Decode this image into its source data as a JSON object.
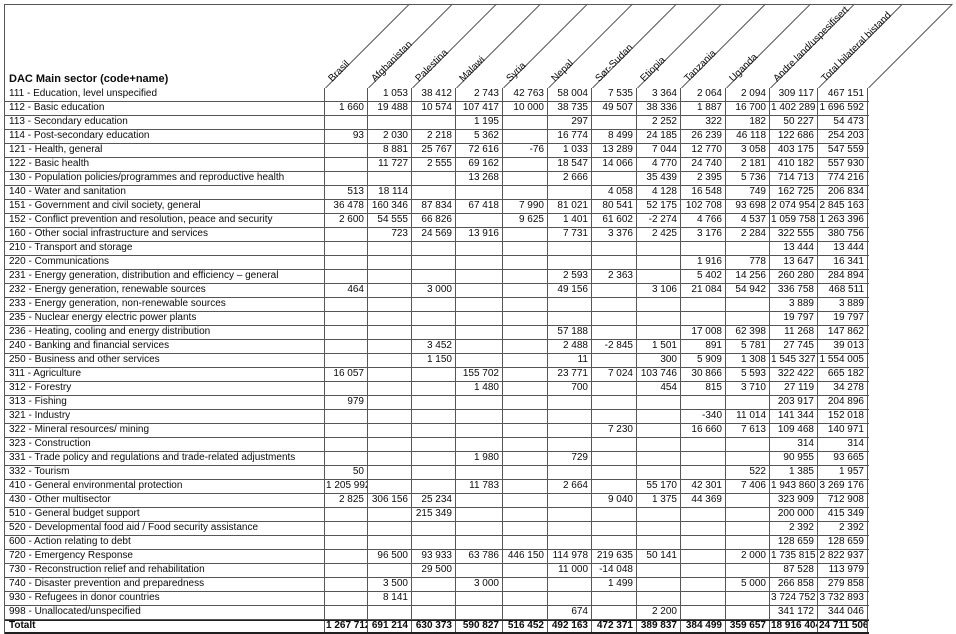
{
  "colors": {
    "grid": "#565656",
    "heavy": "#1f1f1f",
    "text": "#0b0b0b",
    "background": "#ffffff"
  },
  "table": {
    "corner_label": "DAC Main sector (code+name)",
    "columns": [
      "Brasil",
      "Afghanistan",
      "Palestina",
      "Malawi",
      "Syria",
      "Nepal",
      "Sør-Sudan",
      "Etiopia",
      "Tanzania",
      "Uganda",
      "Andre land/uspesifisert",
      "Total bilateral bistand"
    ],
    "rows": [
      {
        "label": "111 - Education, level unspecified",
        "values": [
          "",
          "1 053",
          "38 412",
          "2 743",
          "42 763",
          "58 004",
          "7 535",
          "3 364",
          "2 064",
          "2 094",
          "309 117",
          "467 151"
        ]
      },
      {
        "label": "112 - Basic education",
        "values": [
          "1 660",
          "19 488",
          "10 574",
          "107 417",
          "10 000",
          "38 735",
          "49 507",
          "38 336",
          "1 887",
          "16 700",
          "1 402 289",
          "1 696 592"
        ]
      },
      {
        "label": "113 - Secondary education",
        "values": [
          "",
          "",
          "",
          "1 195",
          "",
          "297",
          "",
          "2 252",
          "322",
          "182",
          "50 227",
          "54 473"
        ]
      },
      {
        "label": "114 - Post-secondary education",
        "values": [
          "93",
          "2 030",
          "2 218",
          "5 362",
          "",
          "16 774",
          "8 499",
          "24 185",
          "26 239",
          "46 118",
          "122 686",
          "254 203"
        ]
      },
      {
        "label": "121 - Health, general",
        "values": [
          "",
          "8 881",
          "25 767",
          "72 616",
          "-76",
          "1 033",
          "13 289",
          "7 044",
          "12 770",
          "3 058",
          "403 175",
          "547 559"
        ]
      },
      {
        "label": "122 - Basic health",
        "values": [
          "",
          "11 727",
          "2 555",
          "69 162",
          "",
          "18 547",
          "14 066",
          "4 770",
          "24 740",
          "2 181",
          "410 182",
          "557 930"
        ]
      },
      {
        "label": "130 - Population policies/programmes and reproductive health",
        "values": [
          "",
          "",
          "",
          "13 268",
          "",
          "2 666",
          "",
          "35 439",
          "2 395",
          "5 736",
          "714 713",
          "774 216"
        ]
      },
      {
        "label": "140 - Water and sanitation",
        "values": [
          "513",
          "18 114",
          "",
          "",
          "",
          "",
          "4 058",
          "4 128",
          "16 548",
          "749",
          "162 725",
          "206 834"
        ]
      },
      {
        "label": "151 - Government and civil society, general",
        "values": [
          "36 478",
          "160 346",
          "87 834",
          "67 418",
          "7 990",
          "81 021",
          "80 541",
          "52 175",
          "102 708",
          "93 698",
          "2 074 954",
          "2 845 163"
        ]
      },
      {
        "label": "152 - Conflict prevention and resolution, peace and security",
        "values": [
          "2 600",
          "54 555",
          "66 826",
          "",
          "9 625",
          "1 401",
          "61 602",
          "-2 274",
          "4 766",
          "4 537",
          "1 059 758",
          "1 263 396"
        ]
      },
      {
        "label": "160 - Other social infrastructure and services",
        "values": [
          "",
          "723",
          "24 569",
          "13 916",
          "",
          "7 731",
          "3 376",
          "2 425",
          "3 176",
          "2 284",
          "322 555",
          "380 756"
        ]
      },
      {
        "label": "210 - Transport and storage",
        "values": [
          "",
          "",
          "",
          "",
          "",
          "",
          "",
          "",
          "",
          "",
          "13 444",
          "13 444"
        ]
      },
      {
        "label": "220 - Communications",
        "values": [
          "",
          "",
          "",
          "",
          "",
          "",
          "",
          "",
          "1 916",
          "778",
          "13 647",
          "16 341"
        ]
      },
      {
        "label": "231 - Energy generation, distribution and efficiency – general",
        "values": [
          "",
          "",
          "",
          "",
          "",
          "2 593",
          "2 363",
          "",
          "5 402",
          "14 256",
          "260 280",
          "284 894"
        ]
      },
      {
        "label": "232 - Energy generation, renewable sources",
        "values": [
          "464",
          "",
          "3 000",
          "",
          "",
          "49 156",
          "",
          "3 106",
          "21 084",
          "54 942",
          "336 758",
          "468 511"
        ]
      },
      {
        "label": "233 - Energy generation, non-renewable sources",
        "values": [
          "",
          "",
          "",
          "",
          "",
          "",
          "",
          "",
          "",
          "",
          "3 889",
          "3 889"
        ]
      },
      {
        "label": "235 - Nuclear energy electric power plants",
        "values": [
          "",
          "",
          "",
          "",
          "",
          "",
          "",
          "",
          "",
          "",
          "19 797",
          "19 797"
        ]
      },
      {
        "label": "236 - Heating, cooling and energy distribution",
        "values": [
          "",
          "",
          "",
          "",
          "",
          "57 188",
          "",
          "",
          "17 008",
          "62 398",
          "11 268",
          "147 862"
        ]
      },
      {
        "label": "240 - Banking and financial services",
        "values": [
          "",
          "",
          "3 452",
          "",
          "",
          "2 488",
          "-2 845",
          "1 501",
          "891",
          "5 781",
          "27 745",
          "39 013"
        ]
      },
      {
        "label": "250 - Business and other services",
        "values": [
          "",
          "",
          "1 150",
          "",
          "",
          "11",
          "",
          "300",
          "5 909",
          "1 308",
          "1 545 327",
          "1 554 005"
        ]
      },
      {
        "label": "311 - Agriculture",
        "values": [
          "16 057",
          "",
          "",
          "155 702",
          "",
          "23 771",
          "7 024",
          "103 746",
          "30 866",
          "5 593",
          "322 422",
          "665 182"
        ]
      },
      {
        "label": "312 - Forestry",
        "values": [
          "",
          "",
          "",
          "1 480",
          "",
          "700",
          "",
          "454",
          "815",
          "3 710",
          "27 119",
          "34 278"
        ]
      },
      {
        "label": "313 - Fishing",
        "values": [
          "979",
          "",
          "",
          "",
          "",
          "",
          "",
          "",
          "",
          "",
          "203 917",
          "204 896"
        ]
      },
      {
        "label": "321 - Industry",
        "values": [
          "",
          "",
          "",
          "",
          "",
          "",
          "",
          "",
          "-340",
          "11 014",
          "141 344",
          "152 018"
        ]
      },
      {
        "label": "322 - Mineral resources/ mining",
        "values": [
          "",
          "",
          "",
          "",
          "",
          "",
          "7 230",
          "",
          "16 660",
          "7 613",
          "109 468",
          "140 971"
        ]
      },
      {
        "label": "323 - Construction",
        "values": [
          "",
          "",
          "",
          "",
          "",
          "",
          "",
          "",
          "",
          "",
          "314",
          "314"
        ]
      },
      {
        "label": "331 - Trade policy and regulations and trade-related adjustments",
        "values": [
          "",
          "",
          "",
          "1 980",
          "",
          "729",
          "",
          "",
          "",
          "",
          "90 955",
          "93 665"
        ]
      },
      {
        "label": "332 - Tourism",
        "values": [
          "50",
          "",
          "",
          "",
          "",
          "",
          "",
          "",
          "",
          "522",
          "1 385",
          "1 957"
        ]
      },
      {
        "label": "410 - General environmental protection",
        "values": [
          "1 205 992",
          "",
          "",
          "11 783",
          "",
          "2 664",
          "",
          "55 170",
          "42 301",
          "7 406",
          "1 943 860",
          "3 269 176"
        ]
      },
      {
        "label": "430 - Other multisector",
        "values": [
          "2 825",
          "306 156",
          "25 234",
          "",
          "",
          "",
          "9 040",
          "1 375",
          "44 369",
          "",
          "323 909",
          "712 908"
        ]
      },
      {
        "label": "510 - General budget support",
        "values": [
          "",
          "",
          "215 349",
          "",
          "",
          "",
          "",
          "",
          "",
          "",
          "200 000",
          "415 349"
        ]
      },
      {
        "label": "520 - Developmental food aid / Food security assistance",
        "values": [
          "",
          "",
          "",
          "",
          "",
          "",
          "",
          "",
          "",
          "",
          "2 392",
          "2 392"
        ]
      },
      {
        "label": "600 - Action relating to debt",
        "values": [
          "",
          "",
          "",
          "",
          "",
          "",
          "",
          "",
          "",
          "",
          "128 659",
          "128 659"
        ]
      },
      {
        "label": "720 - Emergency Response",
        "values": [
          "",
          "96 500",
          "93 933",
          "63 786",
          "446 150",
          "114 978",
          "219 635",
          "50 141",
          "",
          "2 000",
          "1 735 815",
          "2 822 937"
        ]
      },
      {
        "label": "730 - Reconstruction relief and rehabilitation",
        "values": [
          "",
          "",
          "29 500",
          "",
          "",
          "11 000",
          "-14 048",
          "",
          "",
          "",
          "87 528",
          "113 979"
        ]
      },
      {
        "label": "740 - Disaster prevention and preparedness",
        "values": [
          "",
          "3 500",
          "",
          "3 000",
          "",
          "",
          "1 499",
          "",
          "",
          "5 000",
          "266 858",
          "279 858"
        ]
      },
      {
        "label": "930 - Refugees in donor countries",
        "values": [
          "",
          "8 141",
          "",
          "",
          "",
          "",
          "",
          "",
          "",
          "",
          "3 724 752",
          "3 732 893"
        ]
      },
      {
        "label": "998 - Unallocated/unspecified",
        "values": [
          "",
          "",
          "",
          "",
          "",
          "674",
          "",
          "2 200",
          "",
          "",
          "341 172",
          "344 046"
        ]
      }
    ],
    "total_row": {
      "label": "Totalt",
      "values": [
        "1 267 712",
        "691 214",
        "630 373",
        "590 827",
        "516 452",
        "492 163",
        "472 371",
        "389 837",
        "384 499",
        "359 657",
        "18 916 404",
        "24 711 506"
      ]
    }
  }
}
